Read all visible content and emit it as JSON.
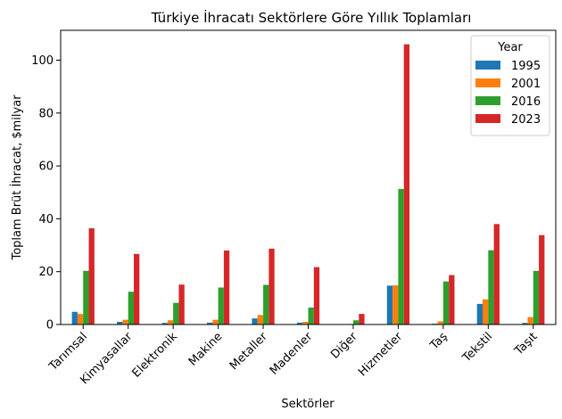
{
  "chart_data": {
    "type": "bar",
    "title": "Türkiye İhracatı Sektörlere Göre Yıllık Toplamları",
    "xlabel": "Sektörler",
    "ylabel": "Toplam Brüt İhracat, $milyar",
    "categories": [
      "Tarımsal",
      "Kimyasallar",
      "Elektronik",
      "Makine",
      "Metaller",
      "Madenler",
      "Diğer",
      "Hizmetler",
      "Taş",
      "Tekstil",
      "Taşıt"
    ],
    "series": [
      {
        "name": "1995",
        "color": "#1f77b4",
        "values": [
          4.8,
          1.0,
          0.6,
          0.7,
          2.3,
          0.7,
          0.1,
          14.7,
          0.3,
          7.8,
          0.6
        ]
      },
      {
        "name": "2001",
        "color": "#ff7f0e",
        "values": [
          4.0,
          1.8,
          1.6,
          1.8,
          3.6,
          1.0,
          0.2,
          14.8,
          1.2,
          9.5,
          2.8
        ]
      },
      {
        "name": "2016",
        "color": "#2ca02c",
        "values": [
          20.3,
          12.4,
          8.2,
          14.0,
          15.0,
          6.4,
          1.6,
          51.3,
          16.3,
          28.1,
          20.3
        ]
      },
      {
        "name": "2023",
        "color": "#d62728",
        "values": [
          36.4,
          26.7,
          15.1,
          28.0,
          28.7,
          21.7,
          4.0,
          106.0,
          18.7,
          38.0,
          33.8
        ]
      }
    ],
    "ylim": [
      0,
      111.3
    ],
    "yticks": [
      0,
      20,
      40,
      60,
      80,
      100
    ],
    "legend": {
      "title": "Year",
      "placement": "top-right"
    },
    "grid": false
  }
}
